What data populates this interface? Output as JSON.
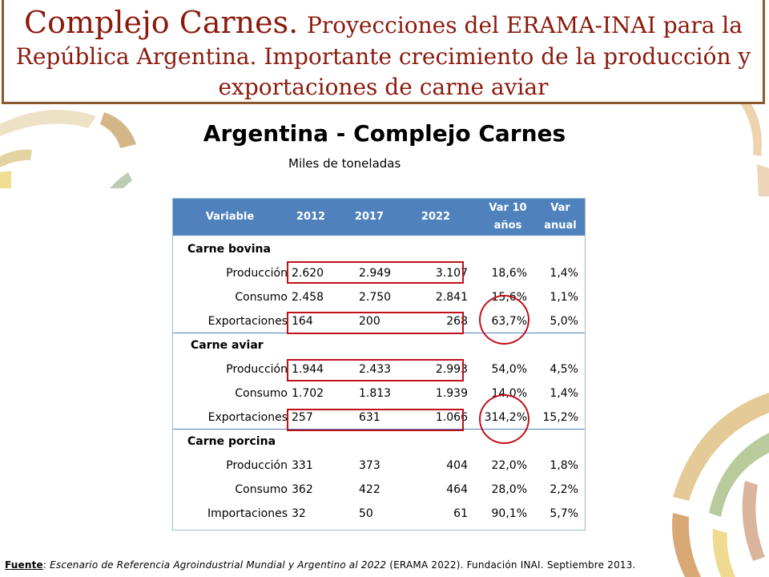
{
  "title": {
    "main": "Complejo Carnes.",
    "rest": "Proyecciones del ERAMA-INAI para la",
    "line2": "República Argentina. Importante crecimiento de la producción y",
    "line3": "exportaciones de carne aviar"
  },
  "subtitle": "Argentina - Complejo Carnes",
  "unit": "Miles de toneladas",
  "table": {
    "headers": [
      "Variable",
      "2012",
      "2017",
      "2022",
      "Var 10 años",
      "Var anual"
    ],
    "groups": [
      {
        "name": "Carne bovina",
        "rows": [
          {
            "label": "Producción",
            "v2012": "2.620",
            "v2017": "2.949",
            "v2022": "3.107",
            "var10": "18,6%",
            "varanual": "1,4%"
          },
          {
            "label": "Consumo",
            "v2012": "2.458",
            "v2017": "2.750",
            "v2022": "2.841",
            "var10": "15,6%",
            "varanual": "1,1%"
          },
          {
            "label": "Exportaciones",
            "v2012": "164",
            "v2017": "200",
            "v2022": "268",
            "var10": "63,7%",
            "varanual": "5,0%"
          }
        ]
      },
      {
        "name": "Carne aviar",
        "rows": [
          {
            "label": "Producción",
            "v2012": "1.944",
            "v2017": "2.433",
            "v2022": "2.993",
            "var10": "54,0%",
            "varanual": "4,5%"
          },
          {
            "label": "Consumo",
            "v2012": "1.702",
            "v2017": "1.813",
            "v2022": "1.939",
            "var10": "14,0%",
            "varanual": "1,4%"
          },
          {
            "label": "Exportaciones",
            "v2012": "257",
            "v2017": "631",
            "v2022": "1.066",
            "var10": "314,2%",
            "varanual": "15,2%"
          }
        ]
      },
      {
        "name": "Carne porcina",
        "rows": [
          {
            "label": "Producción",
            "v2012": "331",
            "v2017": "373",
            "v2022": "404",
            "var10": "22,0%",
            "varanual": "1,8%"
          },
          {
            "label": "Consumo",
            "v2012": "362",
            "v2017": "422",
            "v2022": "464",
            "var10": "28,0%",
            "varanual": "2,2%"
          },
          {
            "label": "Importaciones",
            "v2012": "32",
            "v2017": "50",
            "v2022": "61",
            "var10": "90,1%",
            "varanual": "5,7%"
          }
        ]
      }
    ]
  },
  "footer": {
    "label": "Fuente",
    "colon": ": ",
    "italic": "Escenario de Referencia Agroindustrial Mundial y Argentino al 2022",
    "rest": " (ERAMA 2022). Fundación INAI. Septiembre 2013."
  },
  "colors": {
    "title": "#8b1a0e",
    "header_bg": "#4f81bd",
    "highlight": "#c0101a",
    "border": "#8a5a2e"
  }
}
